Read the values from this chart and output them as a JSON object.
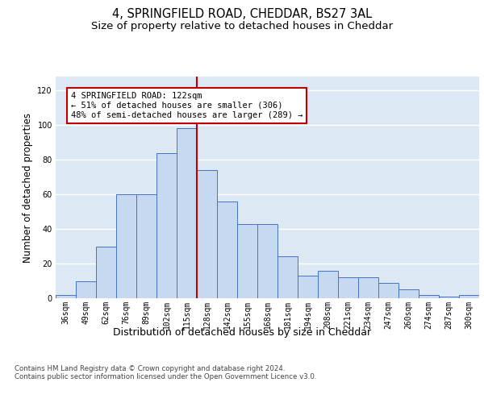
{
  "title_line1": "4, SPRINGFIELD ROAD, CHEDDAR, BS27 3AL",
  "title_line2": "Size of property relative to detached houses in Cheddar",
  "xlabel": "Distribution of detached houses by size in Cheddar",
  "ylabel": "Number of detached properties",
  "categories": [
    "36sqm",
    "49sqm",
    "62sqm",
    "76sqm",
    "89sqm",
    "102sqm",
    "115sqm",
    "128sqm",
    "142sqm",
    "155sqm",
    "168sqm",
    "181sqm",
    "194sqm",
    "208sqm",
    "221sqm",
    "234sqm",
    "247sqm",
    "260sqm",
    "274sqm",
    "287sqm",
    "300sqm"
  ],
  "bar_heights": [
    2,
    10,
    30,
    60,
    60,
    84,
    98,
    74,
    56,
    43,
    43,
    24,
    13,
    16,
    12,
    12,
    9,
    5,
    2,
    1,
    2
  ],
  "bar_color": "#c6d9f0",
  "bar_edge_color": "#4472c4",
  "vline_x_idx": 6.5,
  "vline_color": "#c00000",
  "annotation_text": "4 SPRINGFIELD ROAD: 122sqm\n← 51% of detached houses are smaller (306)\n48% of semi-detached houses are larger (289) →",
  "annotation_box_color": "#ffffff",
  "annotation_box_edge_color": "#c00000",
  "ylim": [
    0,
    128
  ],
  "yticks": [
    0,
    20,
    40,
    60,
    80,
    100,
    120
  ],
  "background_color": "#dce9f5",
  "grid_color": "#ffffff",
  "footer_text": "Contains HM Land Registry data © Crown copyright and database right 2024.\nContains public sector information licensed under the Open Government Licence v3.0.",
  "title_fontsize": 10.5,
  "subtitle_fontsize": 9.5,
  "tick_fontsize": 7,
  "ylabel_fontsize": 8.5,
  "xlabel_fontsize": 9,
  "annotation_fontsize": 7.5,
  "footer_fontsize": 6.2
}
